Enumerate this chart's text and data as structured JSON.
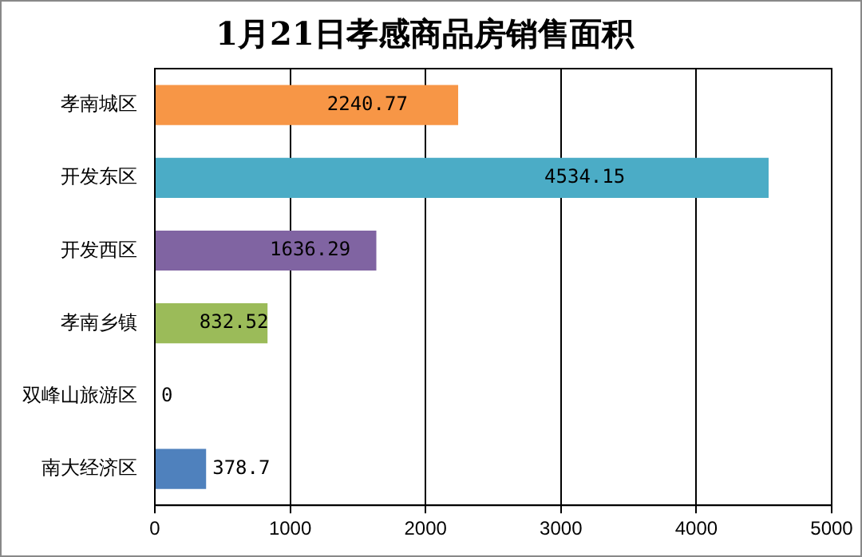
{
  "chart_data": {
    "type": "bar",
    "orientation": "horizontal",
    "title": "1月21日孝感商品房销售面积",
    "categories": [
      "孝南城区",
      "开发东区",
      "开发西区",
      "孝南乡镇",
      "双峰山旅游区",
      "南大经济区"
    ],
    "values": [
      2240.77,
      4534.15,
      1636.29,
      832.52,
      0,
      378.7
    ],
    "colors": [
      "#f79646",
      "#4bacc6",
      "#8064a2",
      "#9bbb59",
      "#8fb3d9",
      "#4f81bd"
    ],
    "xlim": [
      0,
      5000
    ],
    "xticks": [
      0,
      1000,
      2000,
      3000,
      4000,
      5000
    ],
    "grid": "x",
    "data_labels": true,
    "legend": false
  }
}
